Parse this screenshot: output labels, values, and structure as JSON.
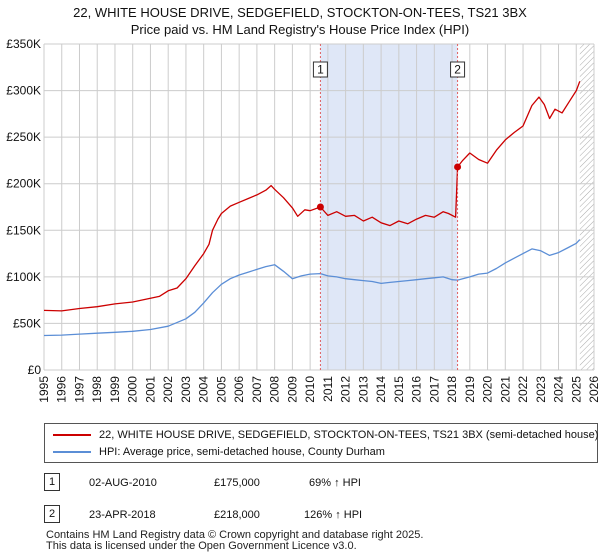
{
  "chart_data": {
    "type": "line",
    "title_line1": "22, WHITE HOUSE DRIVE, SEDGEFIELD, STOCKTON-ON-TEES, TS21 3BX",
    "title_line2": "Price paid vs. HM Land Registry's House Price Index (HPI)",
    "xlim": [
      1995,
      2026
    ],
    "ylim": [
      0,
      350000
    ],
    "x_ticks": [
      "1995",
      "1996",
      "1997",
      "1998",
      "1999",
      "2000",
      "2001",
      "2002",
      "2003",
      "2004",
      "2005",
      "2006",
      "2007",
      "2008",
      "2009",
      "2010",
      "2011",
      "2012",
      "2013",
      "2014",
      "2015",
      "2016",
      "2017",
      "2018",
      "2019",
      "2020",
      "2021",
      "2022",
      "2023",
      "2024",
      "2025",
      "2026"
    ],
    "y_ticks": [
      {
        "value": 0,
        "label": "£0"
      },
      {
        "value": 50000,
        "label": "£50K"
      },
      {
        "value": 100000,
        "label": "£100K"
      },
      {
        "value": 150000,
        "label": "£150K"
      },
      {
        "value": 200000,
        "label": "£200K"
      },
      {
        "value": 250000,
        "label": "£250K"
      },
      {
        "value": 300000,
        "label": "£300K"
      },
      {
        "value": 350000,
        "label": "£350K"
      }
    ],
    "shaded_period": {
      "from": 2010.58,
      "to": 2018.31
    },
    "future_hatch_from": 2025.2,
    "series": [
      {
        "name": "22, WHITE HOUSE DRIVE, SEDGEFIELD, STOCKTON-ON-TEES, TS21 3BX (semi-detached house)",
        "color": "#cc0000",
        "points": [
          [
            1995,
            64000
          ],
          [
            1996,
            63500
          ],
          [
            1997,
            66000
          ],
          [
            1998,
            68000
          ],
          [
            1999,
            71000
          ],
          [
            2000,
            73000
          ],
          [
            2001,
            77000
          ],
          [
            2001.5,
            79000
          ],
          [
            2002,
            85000
          ],
          [
            2002.5,
            88000
          ],
          [
            2003,
            98000
          ],
          [
            2003.5,
            112000
          ],
          [
            2004,
            125000
          ],
          [
            2004.3,
            135000
          ],
          [
            2004.5,
            150000
          ],
          [
            2004.8,
            162000
          ],
          [
            2005,
            168000
          ],
          [
            2005.5,
            176000
          ],
          [
            2006,
            180000
          ],
          [
            2006.5,
            184000
          ],
          [
            2007,
            188000
          ],
          [
            2007.5,
            193000
          ],
          [
            2007.8,
            198000
          ],
          [
            2008,
            194000
          ],
          [
            2008.5,
            185000
          ],
          [
            2009,
            174000
          ],
          [
            2009.3,
            165000
          ],
          [
            2009.7,
            172000
          ],
          [
            2010,
            171000
          ],
          [
            2010.58,
            175000
          ],
          [
            2011,
            166000
          ],
          [
            2011.5,
            170000
          ],
          [
            2012,
            165000
          ],
          [
            2012.5,
            166000
          ],
          [
            2013,
            160000
          ],
          [
            2013.5,
            164000
          ],
          [
            2014,
            158000
          ],
          [
            2014.5,
            155000
          ],
          [
            2015,
            160000
          ],
          [
            2015.5,
            157000
          ],
          [
            2016,
            162000
          ],
          [
            2016.5,
            166000
          ],
          [
            2017,
            164000
          ],
          [
            2017.5,
            170000
          ],
          [
            2017.8,
            168000
          ],
          [
            2018.2,
            164000
          ],
          [
            2018.31,
            218000
          ],
          [
            2018.6,
            225000
          ],
          [
            2019,
            233000
          ],
          [
            2019.5,
            226000
          ],
          [
            2020,
            222000
          ],
          [
            2020.5,
            236000
          ],
          [
            2021,
            247000
          ],
          [
            2021.5,
            255000
          ],
          [
            2022,
            262000
          ],
          [
            2022.5,
            284000
          ],
          [
            2022.9,
            293000
          ],
          [
            2023.2,
            285000
          ],
          [
            2023.5,
            270000
          ],
          [
            2023.8,
            280000
          ],
          [
            2024.2,
            276000
          ],
          [
            2024.6,
            288000
          ],
          [
            2025,
            300000
          ],
          [
            2025.2,
            310000
          ]
        ]
      },
      {
        "name": "HPI: Average price, semi-detached house, County Durham",
        "color": "#5b8ed6",
        "points": [
          [
            1995,
            37000
          ],
          [
            1996,
            37500
          ],
          [
            1997,
            38500
          ],
          [
            1998,
            39500
          ],
          [
            1999,
            40500
          ],
          [
            2000,
            41500
          ],
          [
            2001,
            43500
          ],
          [
            2002,
            47000
          ],
          [
            2003,
            55000
          ],
          [
            2003.5,
            62000
          ],
          [
            2004,
            72000
          ],
          [
            2004.5,
            83000
          ],
          [
            2005,
            92000
          ],
          [
            2005.5,
            98000
          ],
          [
            2006,
            102000
          ],
          [
            2006.5,
            105000
          ],
          [
            2007,
            108000
          ],
          [
            2007.5,
            111000
          ],
          [
            2008,
            113000
          ],
          [
            2008.5,
            106000
          ],
          [
            2009,
            98000
          ],
          [
            2009.5,
            101000
          ],
          [
            2010,
            103000
          ],
          [
            2010.58,
            103500
          ],
          [
            2011,
            101000
          ],
          [
            2011.5,
            100000
          ],
          [
            2012,
            98000
          ],
          [
            2012.5,
            97000
          ],
          [
            2013,
            96000
          ],
          [
            2013.5,
            95000
          ],
          [
            2014,
            93000
          ],
          [
            2014.5,
            94000
          ],
          [
            2015,
            95000
          ],
          [
            2015.5,
            96000
          ],
          [
            2016,
            97000
          ],
          [
            2016.5,
            98000
          ],
          [
            2017,
            99000
          ],
          [
            2017.5,
            100000
          ],
          [
            2018,
            97000
          ],
          [
            2018.31,
            96500
          ],
          [
            2019,
            100000
          ],
          [
            2019.5,
            103000
          ],
          [
            2020,
            104000
          ],
          [
            2020.5,
            109000
          ],
          [
            2021,
            115000
          ],
          [
            2021.5,
            120000
          ],
          [
            2022,
            125000
          ],
          [
            2022.5,
            130000
          ],
          [
            2023,
            128000
          ],
          [
            2023.5,
            123000
          ],
          [
            2024,
            126000
          ],
          [
            2024.5,
            131000
          ],
          [
            2025,
            136000
          ],
          [
            2025.2,
            140000
          ]
        ]
      }
    ],
    "transactions": [
      {
        "marker": "1",
        "x": 2010.58,
        "value": 175000,
        "date": "02-AUG-2010",
        "price": "£175,000",
        "hpi_change": "69% ↑ HPI"
      },
      {
        "marker": "2",
        "x": 2018.31,
        "value": 218000,
        "date": "23-APR-2018",
        "price": "£218,000",
        "hpi_change": "126% ↑ HPI"
      }
    ],
    "legend": [
      {
        "label": "22, WHITE HOUSE DRIVE, SEDGEFIELD, STOCKTON-ON-TEES, TS21 3BX (semi-detached house)",
        "color": "#cc0000"
      },
      {
        "label": "HPI: Average price, semi-detached house, County Durham",
        "color": "#5b8ed6"
      }
    ]
  },
  "footer": {
    "line1": "Contains HM Land Registry data © Crown copyright and database right 2025.",
    "line2": "This data is licensed under the Open Government Licence v3.0."
  },
  "colors": {
    "grid": "#cccccc",
    "shade": "#dfe7f7",
    "marker_line": "#e06060"
  }
}
